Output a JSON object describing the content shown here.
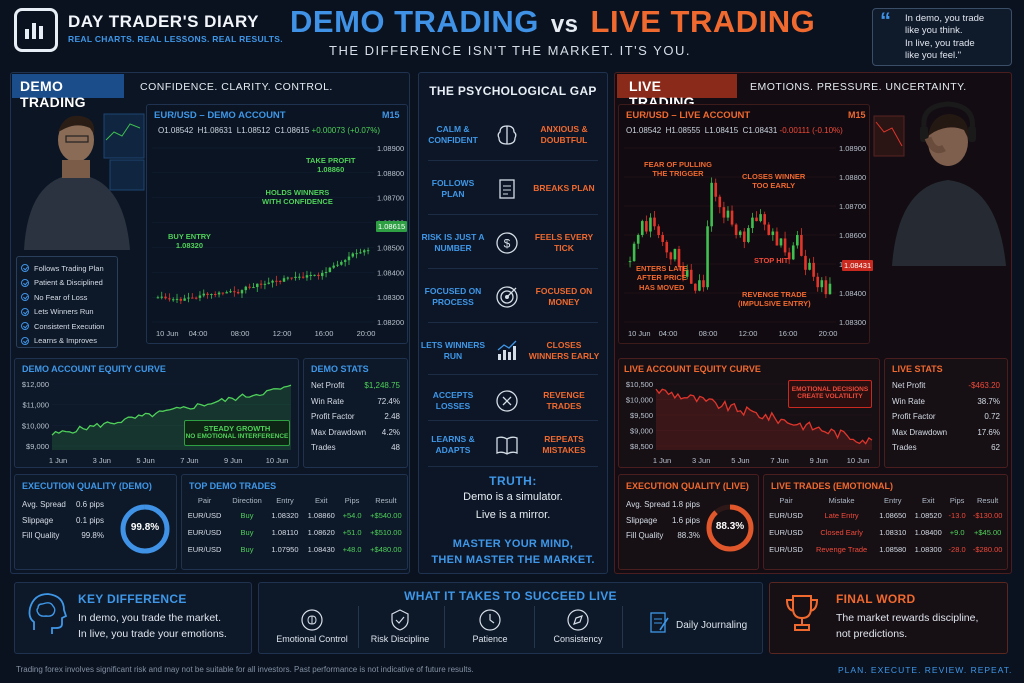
{
  "header": {
    "brand": "DAY TRADER'S DIARY",
    "brand_tagline": "REAL CHARTS. REAL LESSONS. REAL RESULTS.",
    "title_demo": "DEMO TRADING",
    "title_vs": "vs",
    "title_live": "LIVE TRADING",
    "subtitle": "THE DIFFERENCE ISN'T THE MARKET. IT'S YOU.",
    "quote_lines": [
      "In demo, you trade",
      "like you think.",
      "In live, you trade",
      "like you feel.\""
    ]
  },
  "colors": {
    "demo": "#3f92e6",
    "live": "#f0692f",
    "bull": "#3fbf4f",
    "bear": "#e0352b",
    "positive": "#4fd15a",
    "negative": "#f04a3a"
  },
  "demo": {
    "tag": "DEMO TRADING",
    "caption": "CONFIDENCE. CLARITY. CONTROL.",
    "chart": {
      "title": "EUR/USD – DEMO ACCOUNT",
      "timeframe": "M15",
      "ohlc": {
        "o": "1.08542",
        "h": "1.08631",
        "l": "1.08512",
        "c": "1.08615",
        "chg": "+0.00073 (+0.07%)"
      },
      "price_labels": [
        "1.08900",
        "1.08800",
        "1.08700",
        "1.08600",
        "1.08500",
        "1.08400",
        "1.08300",
        "1.08200"
      ],
      "current_price": "1.08615",
      "time_labels": [
        "10 Jun",
        "04:00",
        "08:00",
        "12:00",
        "16:00",
        "20:00"
      ],
      "notes": {
        "take_profit": "TAKE PROFIT",
        "take_profit_price": "1.08860",
        "holds_1": "HOLDS WINNERS",
        "holds_2": "WITH CONFIDENCE",
        "buy_entry": "BUY ENTRY",
        "buy_price": "1.08320"
      }
    },
    "checklist": [
      "Follows Trading Plan",
      "Patient & Disciplined",
      "No Fear of Loss",
      "Lets Winners Run",
      "Consistent Execution",
      "Learns & Improves"
    ],
    "equity": {
      "title": "DEMO ACCOUNT EQUITY CURVE",
      "y_labels": [
        "$12,000",
        "$11,000",
        "$10,000",
        "$9,000"
      ],
      "x_labels": [
        "1 Jun",
        "3 Jun",
        "5 Jun",
        "7 Jun",
        "9 Jun",
        "10 Jun"
      ],
      "note_1": "STEADY GROWTH",
      "note_2": "NO EMOTIONAL INTERFERENCE"
    },
    "stats": {
      "title": "DEMO STATS",
      "rows": [
        {
          "label": "Net Profit",
          "value": "$1,248.75"
        },
        {
          "label": "Win Rate",
          "value": "72.4%"
        },
        {
          "label": "Profit Factor",
          "value": "2.48"
        },
        {
          "label": "Max Drawdown",
          "value": "4.2%"
        },
        {
          "label": "Trades",
          "value": "48"
        }
      ]
    },
    "execution": {
      "title": "EXECUTION QUALITY (DEMO)",
      "rows": [
        {
          "label": "Avg. Spread",
          "value": "0.6 pips"
        },
        {
          "label": "Slippage",
          "value": "0.1 pips"
        },
        {
          "label": "Fill Quality",
          "value": "99.8%"
        }
      ],
      "gauge": "99.8%",
      "gauge_fraction": 0.998
    },
    "trades": {
      "title": "TOP DEMO TRADES",
      "headers": [
        "Pair",
        "Direction",
        "Entry",
        "Exit",
        "Pips",
        "Result"
      ],
      "rows": [
        [
          "EUR/USD",
          "Buy",
          "1.08320",
          "1.08860",
          "+54.0",
          "+$540.00"
        ],
        [
          "EUR/USD",
          "Buy",
          "1.08110",
          "1.08620",
          "+51.0",
          "+$510.00"
        ],
        [
          "EUR/USD",
          "Buy",
          "1.07950",
          "1.08430",
          "+48.0",
          "+$480.00"
        ]
      ]
    }
  },
  "gap": {
    "title": "THE PSYCHOLOGICAL GAP",
    "rows": [
      {
        "left": "CALM & CONFIDENT",
        "icon": "brain-icon",
        "right": "ANXIOUS & DOUBTFUL"
      },
      {
        "left": "FOLLOWS PLAN",
        "icon": "clipboard-icon",
        "right": "BREAKS PLAN"
      },
      {
        "left": "RISK IS JUST A NUMBER",
        "icon": "dollar-icon",
        "right": "FEELS EVERY TICK"
      },
      {
        "left": "FOCUSED ON PROCESS",
        "icon": "target-icon",
        "right": "FOCUSED ON MONEY"
      },
      {
        "left": "LETS WINNERS RUN",
        "icon": "growth-chart-icon",
        "right": "CLOSES WINNERS EARLY"
      },
      {
        "left": "ACCEPTS LOSSES",
        "icon": "x-circle-icon",
        "right": "REVENGE TRADES"
      },
      {
        "left": "LEARNS & ADAPTS",
        "icon": "book-icon",
        "right": "REPEATS MISTAKES"
      }
    ],
    "truth_title": "TRUTH:",
    "truth_1": "Demo is a simulator.",
    "truth_2": "Live is a mirror.",
    "master_1": "MASTER YOUR MIND,",
    "master_2": "THEN MASTER THE MARKET."
  },
  "live": {
    "tag": "LIVE TRADING",
    "caption": "EMOTIONS. PRESSURE. UNCERTAINTY.",
    "chart": {
      "title": "EUR/USD – LIVE ACCOUNT",
      "timeframe": "M15",
      "ohlc": {
        "o": "1.08542",
        "h": "1.08555",
        "l": "1.08415",
        "c": "1.08431",
        "chg": "-0.00111 (-0.10%)"
      },
      "price_labels": [
        "1.08900",
        "1.08800",
        "1.08700",
        "1.08600",
        "1.08500",
        "1.08400",
        "1.08300"
      ],
      "current_price": "1.08431",
      "time_labels": [
        "10 Jun",
        "04:00",
        "08:00",
        "12:00",
        "16:00",
        "20:00"
      ],
      "notes": {
        "fear_1": "FEAR OF PULLING",
        "fear_2": "THE TRIGGER",
        "closes_1": "CLOSES WINNER",
        "closes_2": "TOO EARLY",
        "enters_1": "ENTERS LATE",
        "enters_2": "AFTER PRICE",
        "enters_3": "HAS MOVED",
        "stop": "STOP HIT",
        "revenge_1": "REVENGE TRADE",
        "revenge_2": "(IMPULSIVE ENTRY)"
      }
    },
    "equity": {
      "title": "LIVE ACCOUNT EQUITY CURVE",
      "y_labels": [
        "$10,500",
        "$10,000",
        "$9,500",
        "$9,000",
        "$8,500"
      ],
      "x_labels": [
        "1 Jun",
        "3 Jun",
        "5 Jun",
        "7 Jun",
        "9 Jun",
        "10 Jun"
      ],
      "note_1": "EMOTIONAL DECISIONS",
      "note_2": "CREATE VOLATILITY"
    },
    "stats": {
      "title": "LIVE STATS",
      "rows": [
        {
          "label": "Net Profit",
          "value": "-$463.20"
        },
        {
          "label": "Win Rate",
          "value": "38.7%"
        },
        {
          "label": "Profit Factor",
          "value": "0.72"
        },
        {
          "label": "Max Drawdown",
          "value": "17.6%"
        },
        {
          "label": "Trades",
          "value": "62"
        }
      ]
    },
    "execution": {
      "title": "EXECUTION QUALITY (LIVE)",
      "rows": [
        {
          "label": "Avg. Spread",
          "value": "1.8 pips"
        },
        {
          "label": "Slippage",
          "value": "1.6 pips"
        },
        {
          "label": "Fill Quality",
          "value": "88.3%"
        }
      ],
      "gauge": "88.3%",
      "gauge_fraction": 0.883
    },
    "trades": {
      "title": "LIVE TRADES (EMOTIONAL)",
      "headers": [
        "Pair",
        "Mistake",
        "Entry",
        "Exit",
        "Pips",
        "Result"
      ],
      "rows": [
        [
          "EUR/USD",
          "Late Entry",
          "1.08650",
          "1.08520",
          "-13.0",
          "-$130.00"
        ],
        [
          "EUR/USD",
          "Closed Early",
          "1.08310",
          "1.08400",
          "+9.0",
          "+$45.00"
        ],
        [
          "EUR/USD",
          "Revenge Trade",
          "1.08580",
          "1.08300",
          "-28.0",
          "-$280.00"
        ]
      ]
    }
  },
  "bottom": {
    "key_title": "KEY DIFFERENCE",
    "key_1": "In demo, you trade the market.",
    "key_2": "In live, you trade your emotions.",
    "succeed_title": "WHAT IT TAKES TO SUCCEED LIVE",
    "skills": [
      {
        "label": "Emotional Control",
        "icon": "brain-icon"
      },
      {
        "label": "Risk Discipline",
        "icon": "shield-icon"
      },
      {
        "label": "Patience",
        "icon": "clock-icon"
      },
      {
        "label": "Consistency",
        "icon": "compass-icon"
      },
      {
        "label": "Daily Journaling",
        "icon": "journal-icon"
      }
    ],
    "final_title": "FINAL WORD",
    "final_1": "The market rewards discipline,",
    "final_2": "not predictions."
  },
  "footer": {
    "disclaimer": "Trading forex involves significant risk and may not be suitable for all investors. Past performance is not indicative of future results.",
    "motto": "PLAN. EXECUTE. REVIEW. REPEAT."
  }
}
